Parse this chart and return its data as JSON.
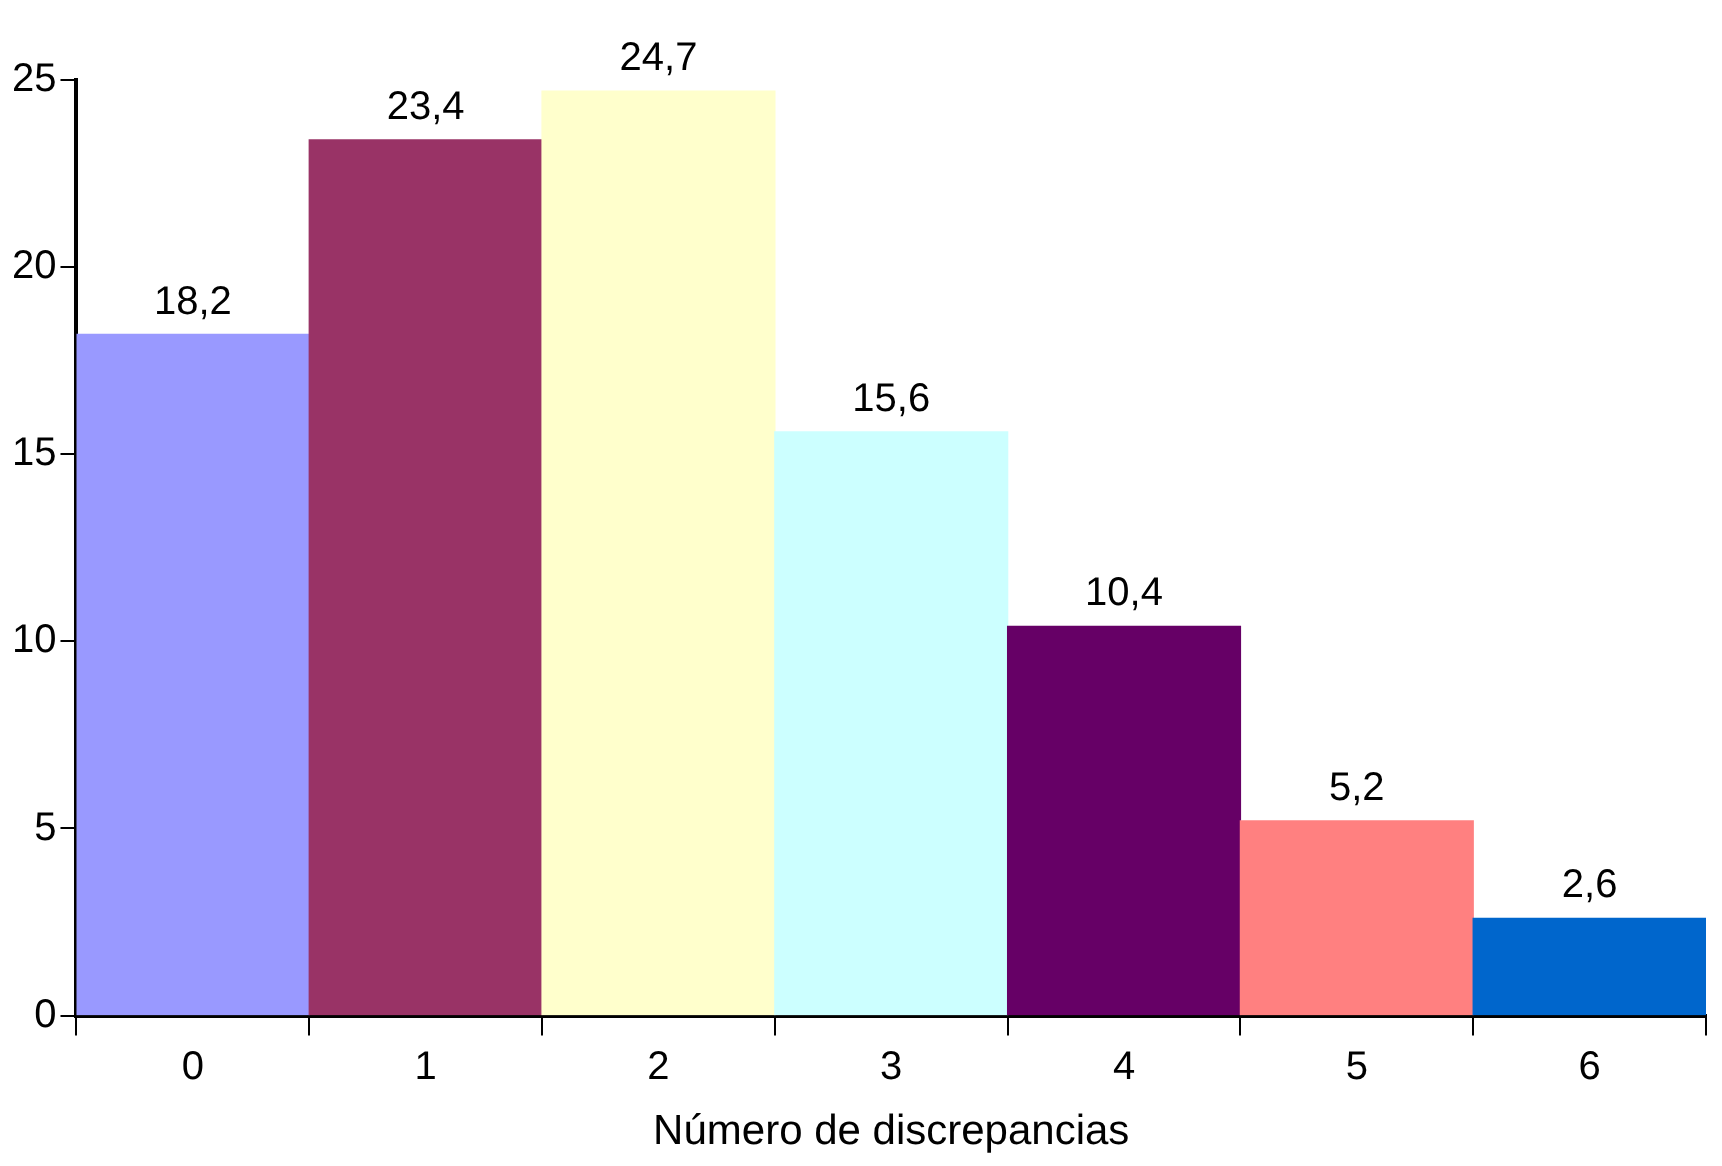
{
  "chart_data": {
    "type": "bar",
    "xlabel": "Número de discrepancias",
    "categories": [
      "0",
      "1",
      "2",
      "3",
      "4",
      "5",
      "6"
    ],
    "values": [
      18.2,
      23.4,
      24.7,
      15.6,
      10.4,
      5.2,
      2.6
    ],
    "colors": [
      "#9999ff",
      "#993366",
      "#ffffcc",
      "#ccffff",
      "#660066",
      "#ff8080",
      "#0066cc"
    ],
    "value_labels": [
      "18,2",
      "23,4",
      "24,7",
      "15,6",
      "10,4",
      "5,2",
      "2,6"
    ],
    "ylim": [
      0,
      25
    ],
    "yticks": [
      0,
      5,
      10,
      15,
      20,
      25
    ],
    "grid": false,
    "legend": false
  }
}
